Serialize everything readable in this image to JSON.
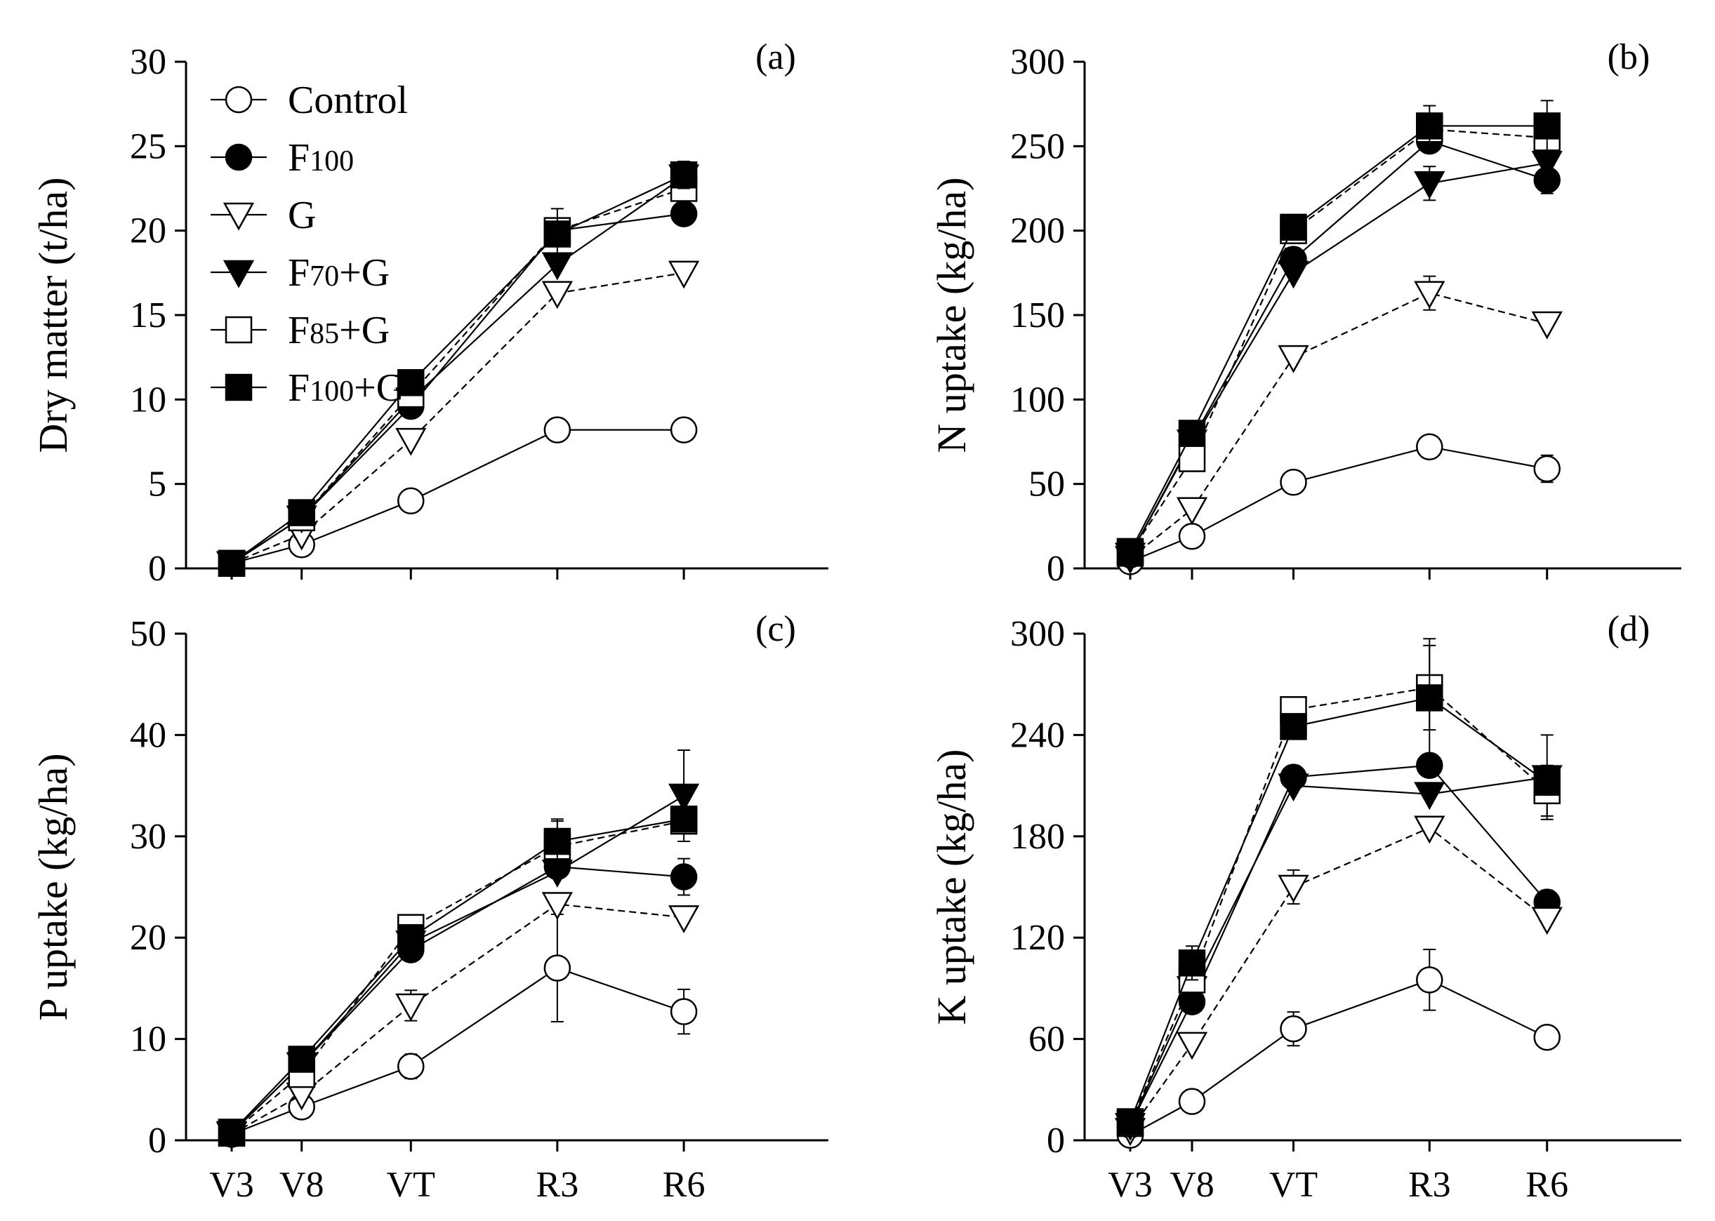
{
  "figure": {
    "x_categories": [
      "V3",
      "V8",
      "VT",
      "R3",
      "R6"
    ],
    "legend": [
      {
        "series": "Control",
        "label": "Control",
        "sub": ""
      },
      {
        "series": "F100",
        "label": "F",
        "sub": "100"
      },
      {
        "series": "G",
        "label": "G",
        "sub": ""
      },
      {
        "series": "F70+G",
        "label": "F",
        "sub": "70",
        "suffix": "+G"
      },
      {
        "series": "F85+G",
        "label": "F",
        "sub": "85",
        "suffix": "+G"
      },
      {
        "series": "F100+G",
        "label": "F",
        "sub": "100",
        "suffix": "+G"
      }
    ],
    "markers": {
      "Control": "circle-open",
      "F100": "circle-filled",
      "G": "triangle-down-open",
      "F70+G": "triangle-down-filled",
      "F85+G": "square-open",
      "F100+G": "square-filled"
    },
    "line_styles": {
      "Control": "solid",
      "F100": "solid",
      "G": "dashed",
      "F70+G": "solid",
      "F85+G": "dashed",
      "F100+G": "solid"
    }
  },
  "chart_data": [
    {
      "type": "line",
      "panel": "(a)",
      "title": "",
      "xlabel": "",
      "ylabel": "Dry matter (t/ha)",
      "categories": [
        "V3",
        "V8",
        "VT",
        "R3",
        "R6"
      ],
      "x_tick_labels_shown": false,
      "ylim": [
        0,
        30
      ],
      "yticks": [
        0,
        5,
        10,
        15,
        20,
        25,
        30
      ],
      "show_legend": true,
      "series": [
        {
          "name": "Control",
          "values": [
            0.3,
            1.4,
            4.0,
            8.2,
            8.2
          ],
          "errors": [
            0,
            0,
            0,
            0,
            0
          ]
        },
        {
          "name": "F100",
          "values": [
            0.3,
            3.0,
            9.6,
            20.0,
            21.0
          ],
          "errors": [
            0,
            0,
            0,
            0,
            0
          ]
        },
        {
          "name": "G",
          "values": [
            0.3,
            2.0,
            7.6,
            16.3,
            17.5
          ],
          "errors": [
            0,
            0,
            0,
            0,
            0
          ]
        },
        {
          "name": "F70+G",
          "values": [
            0.3,
            3.0,
            10.0,
            18.0,
            23.2
          ],
          "errors": [
            0,
            0,
            0,
            0,
            0
          ]
        },
        {
          "name": "F85+G",
          "values": [
            0.3,
            3.0,
            10.3,
            20.0,
            22.5
          ],
          "errors": [
            0,
            0,
            0,
            0,
            0
          ]
        },
        {
          "name": "F100+G",
          "values": [
            0.3,
            3.3,
            11.0,
            19.8,
            23.3
          ],
          "errors": [
            0,
            0,
            0,
            1.5,
            0.8
          ]
        }
      ]
    },
    {
      "type": "line",
      "panel": "(b)",
      "title": "",
      "xlabel": "",
      "ylabel": "N uptake (kg/ha)",
      "categories": [
        "V3",
        "V8",
        "VT",
        "R3",
        "R6"
      ],
      "x_tick_labels_shown": false,
      "ylim": [
        0,
        300
      ],
      "yticks": [
        0,
        50,
        100,
        150,
        200,
        250,
        300
      ],
      "show_legend": false,
      "series": [
        {
          "name": "Control",
          "values": [
            4,
            19,
            51,
            72,
            59
          ],
          "errors": [
            0,
            0,
            0,
            0,
            8
          ]
        },
        {
          "name": "F100",
          "values": [
            8,
            76,
            183,
            253,
            230
          ],
          "errors": [
            0,
            0,
            0,
            0,
            8
          ]
        },
        {
          "name": "G",
          "values": [
            6,
            35,
            125,
            163,
            145
          ],
          "errors": [
            0,
            0,
            0,
            10,
            0
          ]
        },
        {
          "name": "F70+G",
          "values": [
            8,
            75,
            175,
            228,
            240
          ],
          "errors": [
            0,
            0,
            0,
            10,
            0
          ]
        },
        {
          "name": "F85+G",
          "values": [
            9,
            65,
            200,
            260,
            255
          ],
          "errors": [
            0,
            0,
            0,
            0,
            10
          ]
        },
        {
          "name": "F100+G",
          "values": [
            10,
            80,
            202,
            262,
            262
          ],
          "errors": [
            0,
            0,
            0,
            12,
            15
          ]
        }
      ]
    },
    {
      "type": "line",
      "panel": "(c)",
      "title": "",
      "xlabel": "",
      "ylabel": "P uptake (kg/ha)",
      "categories": [
        "V3",
        "V8",
        "VT",
        "R3",
        "R6"
      ],
      "x_tick_labels_shown": true,
      "ylim": [
        0,
        50
      ],
      "yticks": [
        0,
        10,
        20,
        30,
        40,
        50
      ],
      "show_legend": false,
      "series": [
        {
          "name": "Control",
          "values": [
            0.6,
            3.3,
            7.3,
            17.0,
            12.7
          ],
          "errors": [
            0,
            0,
            1.2,
            5.3,
            2.2
          ]
        },
        {
          "name": "F100",
          "values": [
            0.7,
            7.5,
            18.8,
            27.0,
            26.0
          ],
          "errors": [
            0,
            0,
            0,
            0,
            1.8
          ]
        },
        {
          "name": "G",
          "values": [
            0.6,
            4.5,
            13.3,
            23.3,
            22.0
          ],
          "errors": [
            0,
            0,
            1.5,
            0,
            0
          ]
        },
        {
          "name": "F70+G",
          "values": [
            0.7,
            7.5,
            19.5,
            26.5,
            34.0
          ],
          "errors": [
            0,
            0,
            0,
            0,
            4.5
          ]
        },
        {
          "name": "F85+G",
          "values": [
            0.7,
            6.5,
            21.0,
            29.0,
            31.5
          ],
          "errors": [
            0,
            0,
            0,
            2.5,
            0
          ]
        },
        {
          "name": "F100+G",
          "values": [
            0.8,
            8.0,
            20.0,
            29.5,
            31.7
          ],
          "errors": [
            0,
            0,
            0,
            2.2,
            0
          ]
        }
      ]
    },
    {
      "type": "line",
      "panel": "(d)",
      "title": "",
      "xlabel": "",
      "ylabel": "K uptake (kg/ha)",
      "categories": [
        "V3",
        "V8",
        "VT",
        "R3",
        "R6"
      ],
      "x_tick_labels_shown": true,
      "ylim": [
        0,
        300
      ],
      "yticks": [
        0,
        60,
        120,
        180,
        240,
        300
      ],
      "show_legend": false,
      "series": [
        {
          "name": "Control",
          "values": [
            3,
            23,
            66,
            95,
            61
          ],
          "errors": [
            0,
            0,
            10,
            18,
            0
          ]
        },
        {
          "name": "F100",
          "values": [
            9,
            82,
            215,
            222,
            141
          ],
          "errors": [
            0,
            0,
            0,
            0,
            7
          ]
        },
        {
          "name": "G",
          "values": [
            6,
            57,
            150,
            185,
            131
          ],
          "errors": [
            0,
            0,
            10,
            0,
            0
          ]
        },
        {
          "name": "F70+G",
          "values": [
            9,
            90,
            210,
            205,
            215
          ],
          "errors": [
            0,
            0,
            0,
            0,
            25
          ]
        },
        {
          "name": "F85+G",
          "values": [
            10,
            95,
            255,
            268,
            207
          ],
          "errors": [
            0,
            0,
            7,
            25,
            15
          ]
        },
        {
          "name": "F100+G",
          "values": [
            11,
            105,
            245,
            262,
            212
          ],
          "errors": [
            0,
            10,
            0,
            35,
            0
          ]
        }
      ]
    }
  ]
}
